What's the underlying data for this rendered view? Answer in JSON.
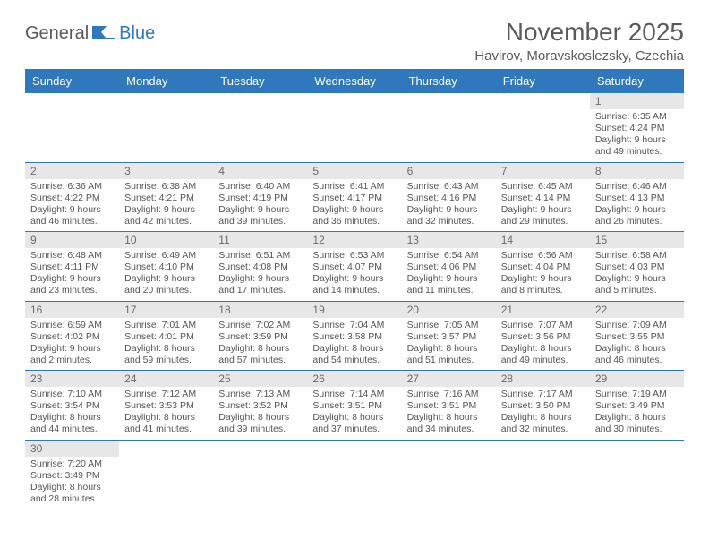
{
  "brand": {
    "part1": "General",
    "part2": "Blue"
  },
  "title": "November 2025",
  "location": "Havirov, Moravskoslezsky, Czechia",
  "colors": {
    "header_bg": "#2f78bd",
    "header_text": "#ffffff",
    "daynum_bg": "#e7e7e7",
    "border": "#2f78bd",
    "text": "#4a4a4a"
  },
  "weekdays": [
    "Sunday",
    "Monday",
    "Tuesday",
    "Wednesday",
    "Thursday",
    "Friday",
    "Saturday"
  ],
  "weeks": [
    [
      null,
      null,
      null,
      null,
      null,
      null,
      {
        "n": "1",
        "sr": "6:35 AM",
        "ss": "4:24 PM",
        "dl": "9 hours and 49 minutes."
      }
    ],
    [
      {
        "n": "2",
        "sr": "6:36 AM",
        "ss": "4:22 PM",
        "dl": "9 hours and 46 minutes."
      },
      {
        "n": "3",
        "sr": "6:38 AM",
        "ss": "4:21 PM",
        "dl": "9 hours and 42 minutes."
      },
      {
        "n": "4",
        "sr": "6:40 AM",
        "ss": "4:19 PM",
        "dl": "9 hours and 39 minutes."
      },
      {
        "n": "5",
        "sr": "6:41 AM",
        "ss": "4:17 PM",
        "dl": "9 hours and 36 minutes."
      },
      {
        "n": "6",
        "sr": "6:43 AM",
        "ss": "4:16 PM",
        "dl": "9 hours and 32 minutes."
      },
      {
        "n": "7",
        "sr": "6:45 AM",
        "ss": "4:14 PM",
        "dl": "9 hours and 29 minutes."
      },
      {
        "n": "8",
        "sr": "6:46 AM",
        "ss": "4:13 PM",
        "dl": "9 hours and 26 minutes."
      }
    ],
    [
      {
        "n": "9",
        "sr": "6:48 AM",
        "ss": "4:11 PM",
        "dl": "9 hours and 23 minutes."
      },
      {
        "n": "10",
        "sr": "6:49 AM",
        "ss": "4:10 PM",
        "dl": "9 hours and 20 minutes."
      },
      {
        "n": "11",
        "sr": "6:51 AM",
        "ss": "4:08 PM",
        "dl": "9 hours and 17 minutes."
      },
      {
        "n": "12",
        "sr": "6:53 AM",
        "ss": "4:07 PM",
        "dl": "9 hours and 14 minutes."
      },
      {
        "n": "13",
        "sr": "6:54 AM",
        "ss": "4:06 PM",
        "dl": "9 hours and 11 minutes."
      },
      {
        "n": "14",
        "sr": "6:56 AM",
        "ss": "4:04 PM",
        "dl": "9 hours and 8 minutes."
      },
      {
        "n": "15",
        "sr": "6:58 AM",
        "ss": "4:03 PM",
        "dl": "9 hours and 5 minutes."
      }
    ],
    [
      {
        "n": "16",
        "sr": "6:59 AM",
        "ss": "4:02 PM",
        "dl": "9 hours and 2 minutes."
      },
      {
        "n": "17",
        "sr": "7:01 AM",
        "ss": "4:01 PM",
        "dl": "8 hours and 59 minutes."
      },
      {
        "n": "18",
        "sr": "7:02 AM",
        "ss": "3:59 PM",
        "dl": "8 hours and 57 minutes."
      },
      {
        "n": "19",
        "sr": "7:04 AM",
        "ss": "3:58 PM",
        "dl": "8 hours and 54 minutes."
      },
      {
        "n": "20",
        "sr": "7:05 AM",
        "ss": "3:57 PM",
        "dl": "8 hours and 51 minutes."
      },
      {
        "n": "21",
        "sr": "7:07 AM",
        "ss": "3:56 PM",
        "dl": "8 hours and 49 minutes."
      },
      {
        "n": "22",
        "sr": "7:09 AM",
        "ss": "3:55 PM",
        "dl": "8 hours and 46 minutes."
      }
    ],
    [
      {
        "n": "23",
        "sr": "7:10 AM",
        "ss": "3:54 PM",
        "dl": "8 hours and 44 minutes."
      },
      {
        "n": "24",
        "sr": "7:12 AM",
        "ss": "3:53 PM",
        "dl": "8 hours and 41 minutes."
      },
      {
        "n": "25",
        "sr": "7:13 AM",
        "ss": "3:52 PM",
        "dl": "8 hours and 39 minutes."
      },
      {
        "n": "26",
        "sr": "7:14 AM",
        "ss": "3:51 PM",
        "dl": "8 hours and 37 minutes."
      },
      {
        "n": "27",
        "sr": "7:16 AM",
        "ss": "3:51 PM",
        "dl": "8 hours and 34 minutes."
      },
      {
        "n": "28",
        "sr": "7:17 AM",
        "ss": "3:50 PM",
        "dl": "8 hours and 32 minutes."
      },
      {
        "n": "29",
        "sr": "7:19 AM",
        "ss": "3:49 PM",
        "dl": "8 hours and 30 minutes."
      }
    ],
    [
      {
        "n": "30",
        "sr": "7:20 AM",
        "ss": "3:49 PM",
        "dl": "8 hours and 28 minutes."
      },
      null,
      null,
      null,
      null,
      null,
      null
    ]
  ],
  "labels": {
    "sunrise": "Sunrise: ",
    "sunset": "Sunset: ",
    "daylight": "Daylight: "
  }
}
